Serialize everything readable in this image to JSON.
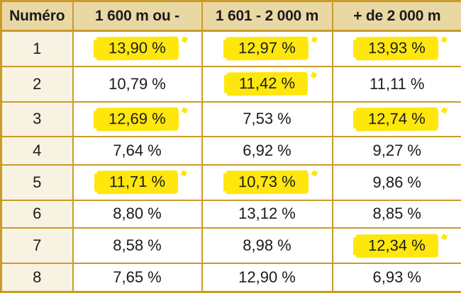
{
  "table": {
    "columns": [
      "Numéro",
      "1 600 m ou -",
      "1 601 - 2 000 m",
      "+ de 2 000 m"
    ],
    "rows": [
      {
        "numero": "1",
        "cells": [
          {
            "value": "13,90 %",
            "highlight": true
          },
          {
            "value": "12,97 %",
            "highlight": true
          },
          {
            "value": "13,93 %",
            "highlight": true
          }
        ]
      },
      {
        "numero": "2",
        "cells": [
          {
            "value": "10,79 %",
            "highlight": false
          },
          {
            "value": "11,42 %",
            "highlight": true
          },
          {
            "value": "11,11 %",
            "highlight": false
          }
        ]
      },
      {
        "numero": "3",
        "cells": [
          {
            "value": "12,69 %",
            "highlight": true
          },
          {
            "value": "7,53 %",
            "highlight": false
          },
          {
            "value": "12,74 %",
            "highlight": true
          }
        ]
      },
      {
        "numero": "4",
        "cells": [
          {
            "value": "7,64 %",
            "highlight": false
          },
          {
            "value": "6,92 %",
            "highlight": false
          },
          {
            "value": "9,27 %",
            "highlight": false
          }
        ]
      },
      {
        "numero": "5",
        "cells": [
          {
            "value": "11,71 %",
            "highlight": true
          },
          {
            "value": "10,73 %",
            "highlight": true
          },
          {
            "value": "9,86 %",
            "highlight": false
          }
        ]
      },
      {
        "numero": "6",
        "cells": [
          {
            "value": "8,80 %",
            "highlight": false
          },
          {
            "value": "13,12 %",
            "highlight": false
          },
          {
            "value": "8,85 %",
            "highlight": false
          }
        ]
      },
      {
        "numero": "7",
        "cells": [
          {
            "value": "8,58 %",
            "highlight": false
          },
          {
            "value": "8,98 %",
            "highlight": false
          },
          {
            "value": "12,34 %",
            "highlight": true
          }
        ]
      },
      {
        "numero": "8",
        "cells": [
          {
            "value": "7,65 %",
            "highlight": false
          },
          {
            "value": "12,90 %",
            "highlight": false
          },
          {
            "value": "6,93 %",
            "highlight": false
          }
        ]
      }
    ]
  },
  "colors": {
    "border_gold": "#c89c27",
    "header_bg": "#e9d7a4",
    "numero_bg": "#f8f2e2",
    "cell_bg": "#ffffff",
    "highlight_yellow": "#ffe70d",
    "text_dark": "#1b1b1b"
  }
}
